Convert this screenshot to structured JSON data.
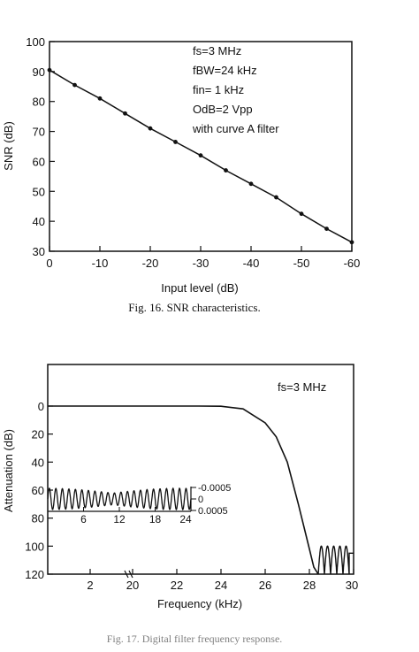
{
  "chart_data": [
    {
      "type": "line",
      "xlabel": "Input level (dB)",
      "ylabel": "SNR (dB)",
      "xlim": [
        0,
        -60
      ],
      "ylim": [
        30,
        100
      ],
      "xticks": [
        0,
        -10,
        -20,
        -30,
        -40,
        -50,
        -60
      ],
      "yticks": [
        30,
        40,
        50,
        60,
        70,
        80,
        90,
        100
      ],
      "x": [
        0,
        -5,
        -10,
        -15,
        -20,
        -25,
        -30,
        -35,
        -40,
        -45,
        -50,
        -55,
        -60
      ],
      "y": [
        90.5,
        85.5,
        81,
        76,
        71,
        66.5,
        62,
        57,
        52.5,
        48,
        42.5,
        37.5,
        33
      ],
      "annotations": [
        "fs=3 MHz",
        "fBW=24 kHz",
        "fin= 1 kHz",
        "OdB=2 Vpp",
        "with curve A filter"
      ],
      "caption": "Fig. 16. SNR characteristics."
    },
    {
      "type": "line",
      "xlabel": "Frequency (kHz)",
      "ylabel": "Attenuation (dB)",
      "ylim": [
        0,
        120
      ],
      "y_inverted": true,
      "xticks": [
        "2",
        "20",
        "22",
        "24",
        "26",
        "28",
        "30"
      ],
      "yticks": [
        0,
        20,
        40,
        60,
        80,
        100,
        120
      ],
      "x": [
        18,
        20,
        22,
        23,
        24,
        25,
        26,
        26.5,
        27,
        27.5,
        28,
        28.2,
        28.4
      ],
      "y": [
        0,
        0,
        0,
        0,
        0.1,
        2,
        12,
        22,
        40,
        70,
        102,
        115,
        120
      ],
      "stopband_ripple_x": [
        28.4,
        29.8
      ],
      "stopband_ripple_y": [
        100,
        120
      ],
      "annotations": [
        "fs=3 MHz"
      ],
      "inset": {
        "xticks": [
          "6",
          "12",
          "18",
          "24"
        ],
        "yticks": [
          "-0.0005",
          "0",
          "0.0005"
        ],
        "x": [
          0,
          24
        ],
        "ripple_amplitude": 0.0005
      },
      "caption": "Fig. 17. Digital filter frequency response."
    }
  ]
}
